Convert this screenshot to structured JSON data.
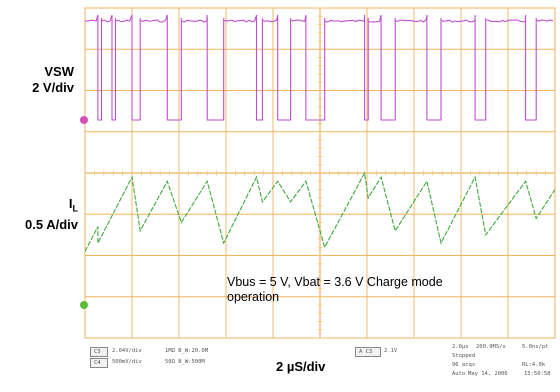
{
  "labels": {
    "ch1_name": "VSW",
    "ch1_scale": "2 V/div",
    "ch2_name": "I",
    "ch2_sub": "L",
    "ch2_scale": "0.5 A/div",
    "timebase": "2 µS/div",
    "note_line1": "Vbus = 5 V, Vbat = 3.6 V Charge mode",
    "note_line2": "operation"
  },
  "status_bar": {
    "ch1_box": "C3",
    "ch1_scale": "2.04V/div",
    "ch1_coupling": "1MΩ  B_W:20.0M",
    "ch2_box": "C4",
    "ch2_scale": "500mV/div",
    "ch2_coupling": "50Ω  B_W:500M",
    "trigger_box": "A  C3",
    "trigger_level": "2.1V",
    "horiz_scale": "2.0µs",
    "sample_rate": "200.0MS/s",
    "resolution": "5.0ns/pt",
    "acq_state": "Stopped",
    "acqs": "96 acqs",
    "record": "RL:4.0k",
    "mode": "Auto",
    "date": "May 14, 2006",
    "time": "15:50:58"
  },
  "colors": {
    "grid": "#f0b25e",
    "grid_tick": "#f3c27a",
    "ch1": "#c04fcf",
    "ch2": "#3caa3a",
    "marker1": "#d44fb8",
    "marker2": "#5bbd3b"
  },
  "chart_data": {
    "type": "line",
    "title": "",
    "xlabel": "2 µS/div",
    "x_divisions": 10,
    "x_unit": "µs",
    "x_range": [
      0,
      20
    ],
    "series": [
      {
        "name": "VSW",
        "unit": "V",
        "scale_per_div": 2,
        "high_v": 4.8,
        "low_v": 0.0,
        "low_pulses": [
          [
            0.55,
            0.7
          ],
          [
            1.15,
            1.3
          ],
          [
            2.0,
            2.35
          ],
          [
            3.5,
            4.1
          ],
          [
            5.2,
            5.9
          ],
          [
            7.3,
            7.55
          ],
          [
            8.2,
            8.75
          ],
          [
            9.4,
            10.2
          ],
          [
            11.9,
            12.05
          ],
          [
            12.6,
            13.2
          ],
          [
            14.55,
            15.15
          ],
          [
            16.6,
            17.05
          ],
          [
            18.75,
            19.2
          ]
        ]
      },
      {
        "name": "I_L",
        "unit": "A",
        "scale_per_div": 0.5,
        "ramps": [
          [
            0.0,
            0.55,
            0.65,
            0.95
          ],
          [
            0.55,
            2.0,
            0.75,
            1.55
          ],
          [
            2.35,
            3.5,
            0.9,
            1.5
          ],
          [
            4.1,
            5.2,
            1.0,
            1.5
          ],
          [
            5.9,
            7.3,
            0.75,
            1.55
          ],
          [
            7.55,
            8.2,
            1.25,
            1.5
          ],
          [
            8.75,
            9.4,
            1.25,
            1.5
          ],
          [
            10.2,
            11.9,
            0.7,
            1.6
          ],
          [
            12.05,
            12.6,
            1.3,
            1.55
          ],
          [
            13.2,
            14.55,
            0.9,
            1.5
          ],
          [
            15.15,
            16.6,
            0.75,
            1.55
          ],
          [
            17.05,
            18.75,
            0.85,
            1.5
          ],
          [
            19.2,
            20.0,
            1.05,
            1.4
          ]
        ]
      }
    ]
  }
}
